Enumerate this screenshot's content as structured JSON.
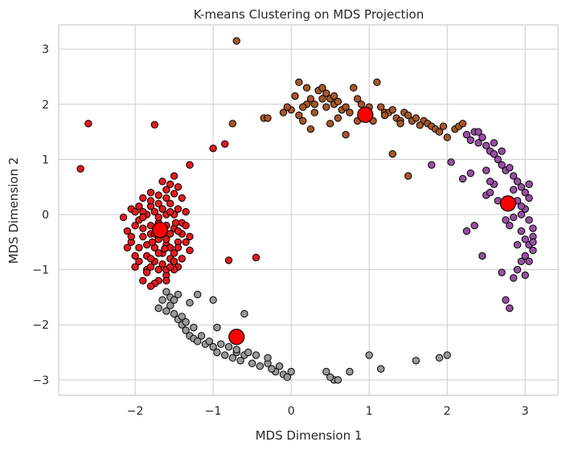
{
  "chart_data": {
    "type": "scatter",
    "title": "K-means Clustering on MDS Projection",
    "xlabel": "MDS Dimension 1",
    "ylabel": "MDS Dimension 2",
    "xlim": [
      -2.98,
      3.42
    ],
    "ylim": [
      -3.28,
      3.44
    ],
    "xticks": [
      -2,
      -1,
      0,
      1,
      2,
      3
    ],
    "yticks": [
      -3,
      -2,
      -1,
      0,
      1,
      2,
      3
    ],
    "xtick_labels": [
      "−2",
      "−1",
      "0",
      "1",
      "2",
      "3"
    ],
    "ytick_labels": [
      "−3",
      "−2",
      "−1",
      "0",
      "1",
      "2",
      "3"
    ],
    "grid": true,
    "legend": "none",
    "series": [
      {
        "color": "#e41a1c",
        "points": [
          [
            -2.6,
            1.65
          ],
          [
            -2.7,
            0.83
          ],
          [
            -1.75,
            1.63
          ],
          [
            -1.3,
            0.9
          ],
          [
            -1.0,
            1.2
          ],
          [
            -0.85,
            1.28
          ],
          [
            -0.8,
            -0.83
          ],
          [
            -0.45,
            -0.78
          ],
          [
            -1.5,
            0.7
          ],
          [
            -1.45,
            0.5
          ],
          [
            -1.55,
            0.55
          ],
          [
            -1.4,
            0.3
          ],
          [
            -1.35,
            0.05
          ],
          [
            -1.3,
            -0.4
          ],
          [
            -1.3,
            -0.65
          ],
          [
            -1.4,
            -0.8
          ],
          [
            -1.45,
            -0.95
          ],
          [
            -1.5,
            -1.0
          ],
          [
            -1.6,
            -1.1
          ],
          [
            -1.7,
            -1.2
          ],
          [
            -1.75,
            -1.25
          ],
          [
            -1.8,
            -1.3
          ],
          [
            -1.9,
            -1.2
          ],
          [
            -1.85,
            -1.0
          ],
          [
            -2.0,
            -0.95
          ],
          [
            -2.0,
            -0.75
          ],
          [
            -2.05,
            -0.5
          ],
          [
            -2.1,
            -0.3
          ],
          [
            -2.15,
            -0.05
          ],
          [
            -2.05,
            0.1
          ],
          [
            -1.95,
            0.15
          ],
          [
            -1.9,
            0.3
          ],
          [
            -1.8,
            0.4
          ],
          [
            -1.7,
            0.35
          ],
          [
            -1.6,
            0.3
          ],
          [
            -1.55,
            0.2
          ],
          [
            -1.65,
            0.1
          ],
          [
            -1.75,
            0.05
          ],
          [
            -1.85,
            0.0
          ],
          [
            -1.95,
            -0.1
          ],
          [
            -1.9,
            -0.25
          ],
          [
            -1.8,
            -0.35
          ],
          [
            -1.7,
            -0.45
          ],
          [
            -1.6,
            -0.55
          ],
          [
            -1.55,
            -0.6
          ],
          [
            -1.45,
            -0.5
          ],
          [
            -1.4,
            -0.35
          ],
          [
            -1.5,
            -0.25
          ],
          [
            -1.6,
            -0.2
          ],
          [
            -1.7,
            -0.15
          ],
          [
            -1.8,
            -0.2
          ],
          [
            -1.9,
            -0.4
          ],
          [
            -1.95,
            -0.6
          ],
          [
            -1.85,
            -0.75
          ],
          [
            -1.75,
            -0.85
          ],
          [
            -1.65,
            -0.9
          ],
          [
            -1.55,
            -0.8
          ],
          [
            -1.5,
            -0.7
          ],
          [
            -1.45,
            -0.6
          ],
          [
            -1.35,
            -0.5
          ],
          [
            -1.4,
            -0.15
          ],
          [
            -1.5,
            0.0
          ],
          [
            -1.45,
            0.1
          ],
          [
            -1.6,
            0.0
          ],
          [
            -1.7,
            -0.05
          ],
          [
            -1.8,
            0.15
          ],
          [
            -1.9,
            0.05
          ],
          [
            -2.0,
            -0.2
          ],
          [
            -2.05,
            -0.4
          ],
          [
            -1.95,
            -0.85
          ],
          [
            -1.8,
            -0.95
          ],
          [
            -1.7,
            -1.0
          ],
          [
            -1.6,
            -1.0
          ],
          [
            -1.55,
            -0.95
          ],
          [
            -1.65,
            -0.7
          ],
          [
            -1.75,
            -0.6
          ],
          [
            -1.85,
            -0.55
          ],
          [
            -1.75,
            -0.35
          ],
          [
            -1.65,
            -0.3
          ],
          [
            -1.55,
            -0.35
          ],
          [
            -1.45,
            -0.3
          ],
          [
            -1.35,
            -0.2
          ],
          [
            -1.7,
            0.2
          ],
          [
            -1.6,
            0.45
          ],
          [
            -1.5,
            0.38
          ],
          [
            -1.8,
            0.25
          ],
          [
            -1.9,
            -0.05
          ],
          [
            -2.1,
            -0.6
          ],
          [
            -2.0,
            0.05
          ],
          [
            -1.6,
            -0.45
          ],
          [
            -1.7,
            -0.7
          ],
          [
            -1.8,
            -0.8
          ],
          [
            -1.5,
            -0.85
          ],
          [
            -1.6,
            -1.2
          ],
          [
            -1.85,
            -1.05
          ],
          [
            -1.65,
            0.6
          ],
          [
            -1.55,
            0.05
          ],
          [
            -1.48,
            -0.15
          ],
          [
            -1.78,
            -0.5
          ],
          [
            -1.62,
            -0.62
          ]
        ]
      },
      {
        "color": "#a65628",
        "points": [
          [
            -0.7,
            3.15
          ],
          [
            -0.75,
            1.65
          ],
          [
            -0.35,
            1.75
          ],
          [
            -0.3,
            1.75
          ],
          [
            0.05,
            2.15
          ],
          [
            0.1,
            2.4
          ],
          [
            0.2,
            2.3
          ],
          [
            0.25,
            2.1
          ],
          [
            0.3,
            2.0
          ],
          [
            0.35,
            2.25
          ],
          [
            0.4,
            2.3
          ],
          [
            0.45,
            2.2
          ],
          [
            0.5,
            2.1
          ],
          [
            0.55,
            2.0
          ],
          [
            0.6,
            2.05
          ],
          [
            0.65,
            1.9
          ],
          [
            0.7,
            1.95
          ],
          [
            0.8,
            2.3
          ],
          [
            0.85,
            2.1
          ],
          [
            0.9,
            2.0
          ],
          [
            1.0,
            1.95
          ],
          [
            1.1,
            2.4
          ],
          [
            1.15,
            1.95
          ],
          [
            1.2,
            1.85
          ],
          [
            1.25,
            1.85
          ],
          [
            1.3,
            1.9
          ],
          [
            1.35,
            1.75
          ],
          [
            1.4,
            1.7
          ],
          [
            1.45,
            1.85
          ],
          [
            1.5,
            1.8
          ],
          [
            1.55,
            1.7
          ],
          [
            1.6,
            1.75
          ],
          [
            1.7,
            1.7
          ],
          [
            1.75,
            1.65
          ],
          [
            1.8,
            1.6
          ],
          [
            1.85,
            1.55
          ],
          [
            1.9,
            1.5
          ],
          [
            1.95,
            1.6
          ],
          [
            2.0,
            1.4
          ],
          [
            2.1,
            1.55
          ],
          [
            2.15,
            1.6
          ],
          [
            2.2,
            1.65
          ],
          [
            -0.1,
            1.85
          ],
          [
            0.0,
            1.9
          ],
          [
            0.1,
            1.8
          ],
          [
            0.15,
            1.7
          ],
          [
            0.25,
            1.55
          ],
          [
            0.5,
            1.65
          ],
          [
            0.7,
            1.45
          ],
          [
            0.85,
            1.7
          ],
          [
            0.95,
            1.8
          ],
          [
            1.05,
            1.7
          ],
          [
            1.3,
            1.1
          ],
          [
            1.5,
            0.7
          ],
          [
            -0.05,
            1.95
          ],
          [
            0.2,
            2.0
          ],
          [
            0.3,
            1.85
          ],
          [
            0.4,
            2.1
          ],
          [
            0.6,
            1.75
          ],
          [
            0.75,
            1.85
          ],
          [
            1.2,
            1.8
          ],
          [
            1.4,
            1.65
          ],
          [
            1.65,
            1.62
          ],
          [
            0.15,
            1.95
          ],
          [
            0.45,
            1.95
          ],
          [
            0.55,
            2.15
          ]
        ]
      },
      {
        "color": "#984ea3",
        "points": [
          [
            1.8,
            0.9
          ],
          [
            2.05,
            0.95
          ],
          [
            2.2,
            0.65
          ],
          [
            2.3,
            0.75
          ],
          [
            2.25,
            -0.3
          ],
          [
            2.35,
            -0.2
          ],
          [
            2.45,
            -0.75
          ],
          [
            2.5,
            0.35
          ],
          [
            2.5,
            0.8
          ],
          [
            2.55,
            0.4
          ],
          [
            2.6,
            0.55
          ],
          [
            2.65,
            0.25
          ],
          [
            2.7,
            -1.05
          ],
          [
            2.75,
            -1.55
          ],
          [
            2.8,
            -1.7
          ],
          [
            2.25,
            1.45
          ],
          [
            2.3,
            1.35
          ],
          [
            2.35,
            1.5
          ],
          [
            2.4,
            1.3
          ],
          [
            2.45,
            1.4
          ],
          [
            2.5,
            1.25
          ],
          [
            2.55,
            1.15
          ],
          [
            2.6,
            1.1
          ],
          [
            2.65,
            1.0
          ],
          [
            2.7,
            0.9
          ],
          [
            2.75,
            0.8
          ],
          [
            2.8,
            0.85
          ],
          [
            2.85,
            0.7
          ],
          [
            2.9,
            0.6
          ],
          [
            2.95,
            0.5
          ],
          [
            3.0,
            0.4
          ],
          [
            3.05,
            0.3
          ],
          [
            3.0,
            0.1
          ],
          [
            2.95,
            0.0
          ],
          [
            3.05,
            -0.1
          ],
          [
            3.1,
            -0.25
          ],
          [
            3.1,
            -0.4
          ],
          [
            3.05,
            -0.55
          ],
          [
            3.1,
            -0.65
          ],
          [
            3.0,
            -0.75
          ],
          [
            2.95,
            -0.85
          ],
          [
            2.9,
            -1.0
          ],
          [
            2.85,
            -1.15
          ],
          [
            3.0,
            -1.1
          ],
          [
            2.9,
            0.25
          ],
          [
            2.85,
            -0.05
          ],
          [
            2.95,
            -0.3
          ],
          [
            3.0,
            -0.45
          ],
          [
            2.8,
            -0.2
          ],
          [
            2.75,
            -0.1
          ],
          [
            3.05,
            0.55
          ],
          [
            2.6,
            1.3
          ],
          [
            2.4,
            1.5
          ],
          [
            2.7,
            1.15
          ],
          [
            2.85,
            0.45
          ],
          [
            3.1,
            -0.5
          ],
          [
            3.05,
            -0.85
          ],
          [
            2.55,
            0.6
          ],
          [
            2.9,
            -0.55
          ],
          [
            2.95,
            0.15
          ]
        ]
      },
      {
        "color": "#999999",
        "points": [
          [
            -1.6,
            -1.4
          ],
          [
            -1.55,
            -1.5
          ],
          [
            -1.5,
            -1.55
          ],
          [
            -1.65,
            -1.55
          ],
          [
            -1.7,
            -1.7
          ],
          [
            -1.6,
            -1.75
          ],
          [
            -1.5,
            -1.8
          ],
          [
            -1.45,
            -1.9
          ],
          [
            -1.4,
            -2.0
          ],
          [
            -1.35,
            -2.1
          ],
          [
            -1.3,
            -2.2
          ],
          [
            -1.25,
            -2.25
          ],
          [
            -1.2,
            -2.3
          ],
          [
            -1.1,
            -2.35
          ],
          [
            -1.0,
            -2.4
          ],
          [
            -0.95,
            -2.5
          ],
          [
            -0.85,
            -2.55
          ],
          [
            -0.75,
            -2.6
          ],
          [
            -0.7,
            -2.5
          ],
          [
            -0.65,
            -2.65
          ],
          [
            -0.6,
            -2.55
          ],
          [
            -0.5,
            -2.7
          ],
          [
            -0.4,
            -2.75
          ],
          [
            -0.3,
            -2.7
          ],
          [
            -0.2,
            -2.85
          ],
          [
            -0.1,
            -2.9
          ],
          [
            0.0,
            -2.85
          ],
          [
            -0.05,
            -2.95
          ],
          [
            0.45,
            -2.85
          ],
          [
            0.55,
            -3.0
          ],
          [
            0.6,
            -3.0
          ],
          [
            0.75,
            -2.85
          ],
          [
            1.0,
            -2.55
          ],
          [
            1.15,
            -2.8
          ],
          [
            1.6,
            -2.65
          ],
          [
            1.9,
            -2.6
          ],
          [
            2.0,
            -2.55
          ],
          [
            -1.45,
            -1.45
          ],
          [
            -1.3,
            -1.6
          ],
          [
            -1.2,
            -1.45
          ],
          [
            -1.0,
            -1.55
          ],
          [
            -0.95,
            -2.05
          ],
          [
            -0.6,
            -1.8
          ],
          [
            -1.05,
            -2.3
          ],
          [
            -0.8,
            -2.4
          ],
          [
            -0.55,
            -2.5
          ],
          [
            -0.3,
            -2.6
          ],
          [
            -0.15,
            -2.75
          ],
          [
            -1.35,
            -1.95
          ],
          [
            -1.15,
            -2.2
          ],
          [
            -0.9,
            -2.35
          ],
          [
            -0.7,
            -2.45
          ],
          [
            -0.45,
            -2.55
          ],
          [
            -1.55,
            -1.65
          ],
          [
            -1.25,
            -2.05
          ],
          [
            -1.4,
            -1.85
          ],
          [
            -0.25,
            -2.8
          ],
          [
            0.5,
            -2.95
          ]
        ]
      }
    ],
    "centroids": [
      [
        -1.68,
        -0.28
      ],
      [
        0.95,
        1.81
      ],
      [
        2.78,
        0.2
      ],
      [
        -0.7,
        -2.22
      ]
    ]
  }
}
